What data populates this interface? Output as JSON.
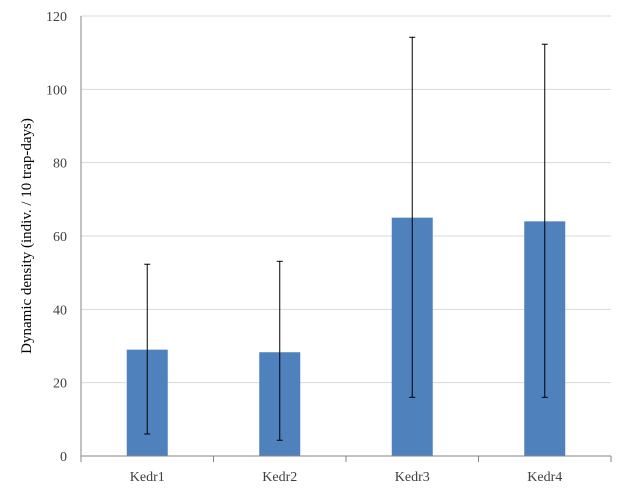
{
  "chart_data": {
    "type": "bar",
    "title": "",
    "xlabel": "",
    "ylabel": "Dynamic density (indiv. / 10 trap-days)",
    "categories": [
      "Kedr1",
      "Kedr2",
      "Kedr3",
      "Kedr4"
    ],
    "series": [
      {
        "values": [
          29,
          28.3,
          65,
          64
        ],
        "error_low": [
          6,
          4.3,
          16,
          16
        ],
        "error_high": [
          52.3,
          53.1,
          114.2,
          112.3
        ]
      }
    ],
    "ylim": [
      0,
      120
    ],
    "yticks": [
      "0",
      "20",
      "40",
      "60",
      "80",
      "100",
      "120"
    ],
    "grid": true,
    "legend": "none",
    "colors": {
      "bar": "#4F81BD",
      "grid": "#D9D9D9",
      "axis": "#868686",
      "error": "#000000"
    }
  }
}
